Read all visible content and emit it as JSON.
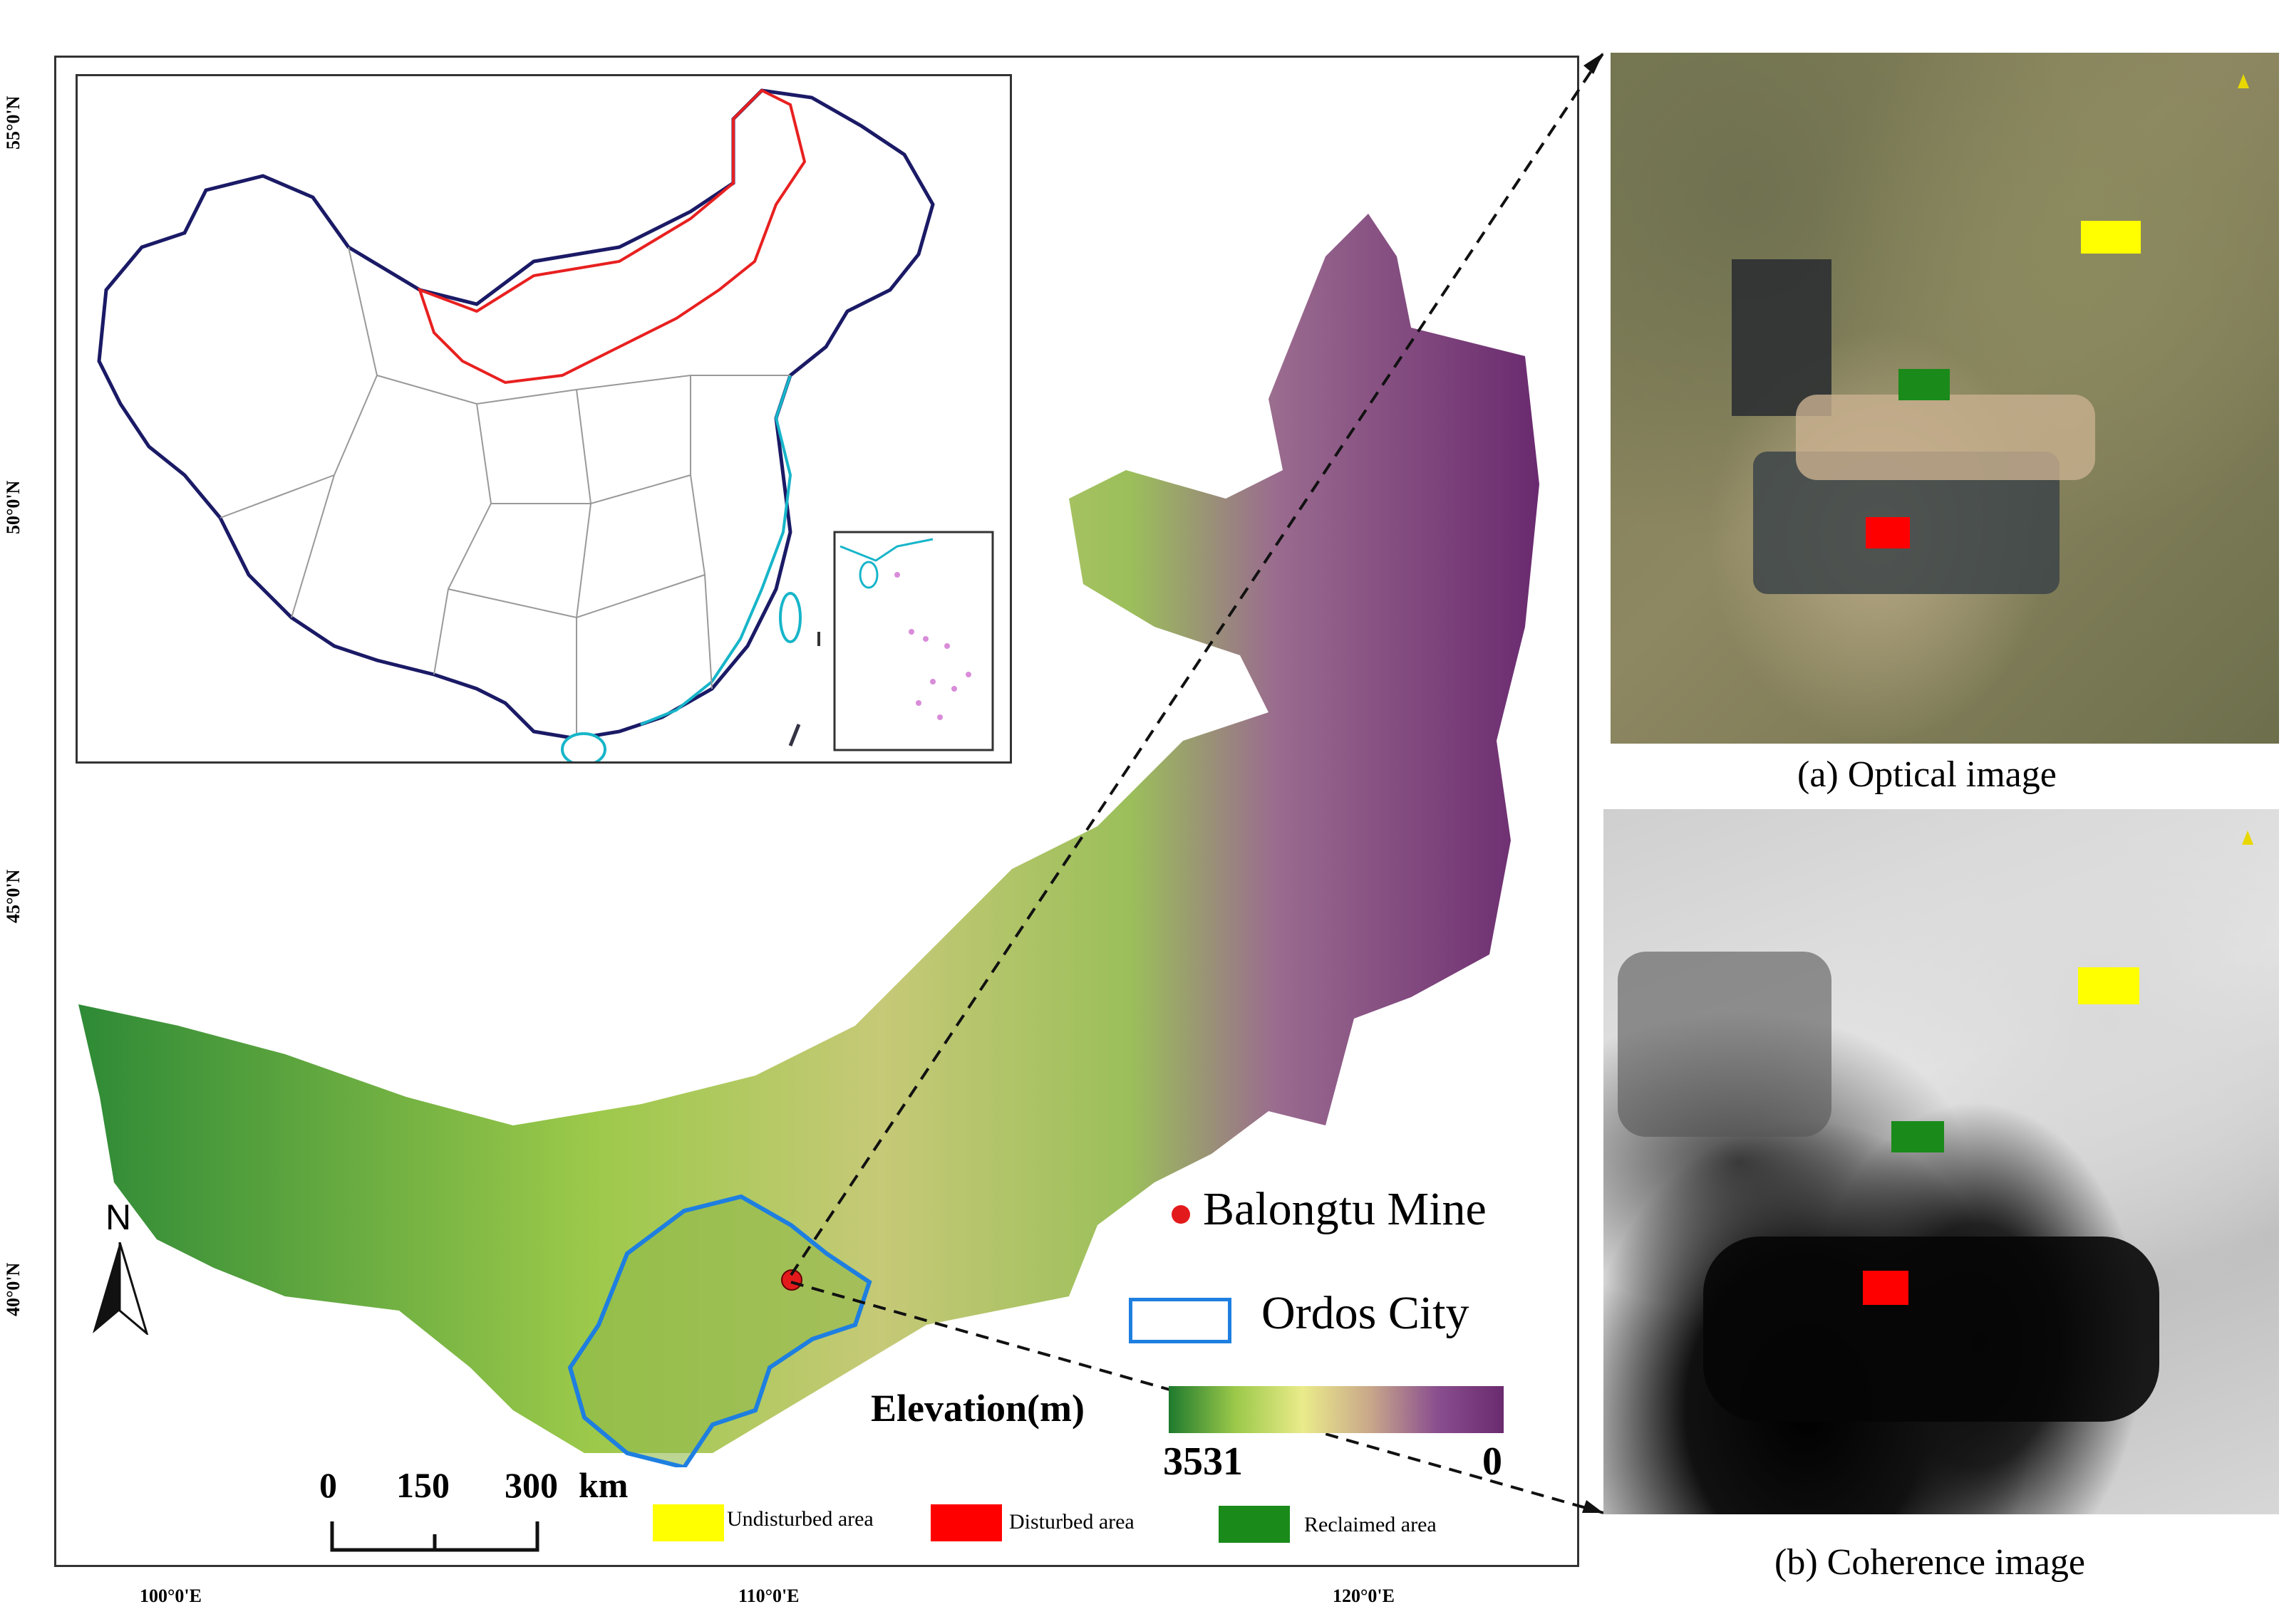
{
  "axes": {
    "lat_labels": [
      "55°0'N",
      "50°0'N",
      "45°0'N",
      "40°0'N"
    ],
    "lon_labels": [
      "100°0'E",
      "110°0'E",
      "120°0'E"
    ]
  },
  "north": "N",
  "mine": {
    "label": "Balongtu Mine",
    "color": "#e31a1c"
  },
  "city": {
    "label": "Ordos City",
    "color": "#1e7fe0"
  },
  "elevation": {
    "title": "Elevation(m)",
    "max_label": "3531",
    "min_label": "0",
    "gradient": [
      "#1e7a2e",
      "#9cc94a",
      "#eaeb8a",
      "#c9a88a",
      "#8a4f8f",
      "#6a2a6f"
    ]
  },
  "scale_bar": {
    "ticks": [
      "0",
      "150",
      "300"
    ],
    "unit": "km"
  },
  "legend": [
    {
      "label": "Undisturbed area",
      "color": "#ffff00"
    },
    {
      "label": "Disturbed area",
      "color": "#ff0000"
    },
    {
      "label": "Reclaimed area",
      "color": "#1a8a1a"
    }
  ],
  "panels": {
    "optical": {
      "caption": "(a) Optical image"
    },
    "coherence": {
      "caption": "(b) Coherence image"
    }
  }
}
